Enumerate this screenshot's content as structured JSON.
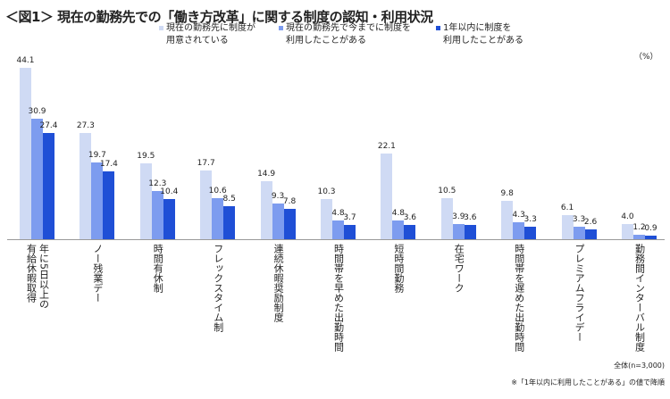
{
  "title": "＜図1＞ 現在の勤務先での「働き方改革」に関する制度の認知・利用状況",
  "unit_label": "（%）",
  "footnotes": {
    "sample": "全体(n=3,000)",
    "sort": "※「1年以内に利用したことがある」の値で降順"
  },
  "chart_data": {
    "type": "bar",
    "title": "＜図1＞ 現在の勤務先での「働き方改革」に関する制度の認知・利用状況",
    "ylabel": "（%）",
    "ylim": [
      0,
      44.1
    ],
    "grid": false,
    "legend_placement": "top",
    "categories": [
      "年に5日以上の\n有給休暇取得",
      "ノー残業デー",
      "時間有休制",
      "フレックスタイム制",
      "連続休暇奨励制度",
      "時間帯を早めた出勤時間",
      "短時間勤務",
      "在宅ワーク",
      "時間帯を遅めた出勤時間",
      "プレミアムフライデー",
      "勤務間インターバル制度"
    ],
    "series": [
      {
        "name": "現在の勤務先に制度が\n用意されている",
        "color": "#cfdaf4",
        "values": [
          44.1,
          27.3,
          19.5,
          17.7,
          14.9,
          10.3,
          22.1,
          10.5,
          9.8,
          6.1,
          4.0
        ]
      },
      {
        "name": "現在の勤務先で今までに制度を\n利用したことがある",
        "color": "#7d9cef",
        "values": [
          30.9,
          19.7,
          12.3,
          10.6,
          9.3,
          4.8,
          4.8,
          3.9,
          4.3,
          3.3,
          1.2
        ]
      },
      {
        "name": "1年以内に制度を\n利用したことがある",
        "color": "#1f4fd6",
        "values": [
          27.4,
          17.4,
          10.4,
          8.5,
          7.8,
          3.7,
          3.6,
          3.6,
          3.3,
          2.6,
          0.9
        ]
      }
    ],
    "value_labels": [
      [
        "44.1",
        "27.3",
        "19.5",
        "17.7",
        "14.9",
        "10.3",
        "22.1",
        "10.5",
        "9.8",
        "6.1",
        "4.0"
      ],
      [
        "30.9",
        "19.7",
        "12.3",
        "10.6",
        "9.3",
        "4.8",
        "4.8",
        "3.9",
        "4.3",
        "3.3",
        "1.2"
      ],
      [
        "27.4",
        "17.4",
        "10.4",
        "8.5",
        "7.8",
        "3.7",
        "3.6",
        "3.6",
        "3.3",
        "2.6",
        "0.9"
      ]
    ]
  }
}
